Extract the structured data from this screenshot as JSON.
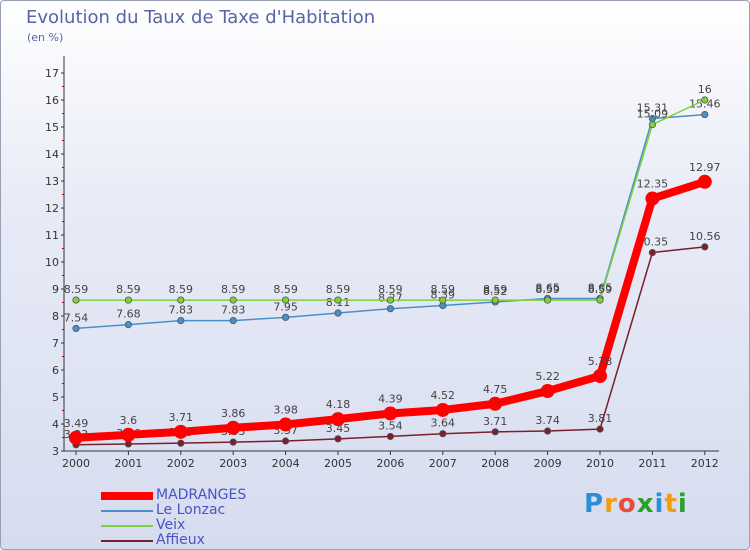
{
  "title": "Evolution du Taux de Taxe d'Habitation",
  "subtitle": "(en %)",
  "logo": {
    "text": "Proxiti",
    "colors": [
      "#2a8fd6",
      "#f39c12",
      "#e74c3c",
      "#2ca02c",
      "#2a8fd6",
      "#f39c12",
      "#2ca02c"
    ]
  },
  "chart_data": {
    "type": "line",
    "x": [
      2000,
      2001,
      2002,
      2003,
      2004,
      2005,
      2006,
      2007,
      2008,
      2009,
      2010,
      2011,
      2012
    ],
    "ylim": [
      3,
      17
    ],
    "yticks": [
      3,
      4,
      5,
      6,
      7,
      8,
      9,
      10,
      11,
      12,
      13,
      14,
      15,
      16,
      17
    ],
    "grid": false,
    "legend_position": "bottom-left",
    "series": [
      {
        "name": "MADRANGES",
        "color": "#ff0000",
        "values": [
          3.49,
          3.6,
          3.71,
          3.86,
          3.98,
          4.18,
          4.39,
          4.52,
          4.75,
          5.22,
          5.78,
          12.35,
          12.97
        ],
        "labels": [
          "3.49",
          "3.6",
          "3.71",
          "3.86",
          "3.98",
          "4.18",
          "4.39",
          "4.52",
          "4.75",
          "5.22",
          "5.78",
          "12.35",
          "12.97"
        ]
      },
      {
        "name": "Le Lonzac",
        "color": "#4a90c8",
        "values": [
          7.54,
          7.68,
          7.83,
          7.83,
          7.95,
          8.11,
          8.27,
          8.39,
          8.52,
          8.65,
          8.65,
          15.31,
          15.46
        ],
        "labels": [
          "7.54",
          "7.68",
          "7.83",
          "7.83",
          "7.95",
          "8.11",
          "8.27",
          "8.39",
          "8.52",
          "8.65",
          "8.65",
          "15.31",
          "15.46"
        ]
      },
      {
        "name": "Veix",
        "color": "#7fd13b",
        "values": [
          8.59,
          8.59,
          8.59,
          8.59,
          8.59,
          8.59,
          8.59,
          8.59,
          8.59,
          8.59,
          8.59,
          15.09,
          16
        ],
        "labels": [
          "8.59",
          "8.59",
          "8.59",
          "8.59",
          "8.59",
          "8.59",
          "8.59",
          "8.59",
          "8.59",
          "8.59",
          "8.59",
          "15.09",
          "16"
        ]
      },
      {
        "name": "Affieux",
        "color": "#7a1f2b",
        "values": [
          3.23,
          3.26,
          3.29,
          3.33,
          3.37,
          3.45,
          3.54,
          3.64,
          3.71,
          3.74,
          3.81,
          10.35,
          10.56
        ],
        "labels": [
          "3.23",
          "3.26",
          "3.29",
          "3.33",
          "3.37",
          "3.45",
          "3.54",
          "3.64",
          "3.71",
          "3.74",
          "3.81",
          "10.35",
          "10.56"
        ]
      }
    ]
  }
}
